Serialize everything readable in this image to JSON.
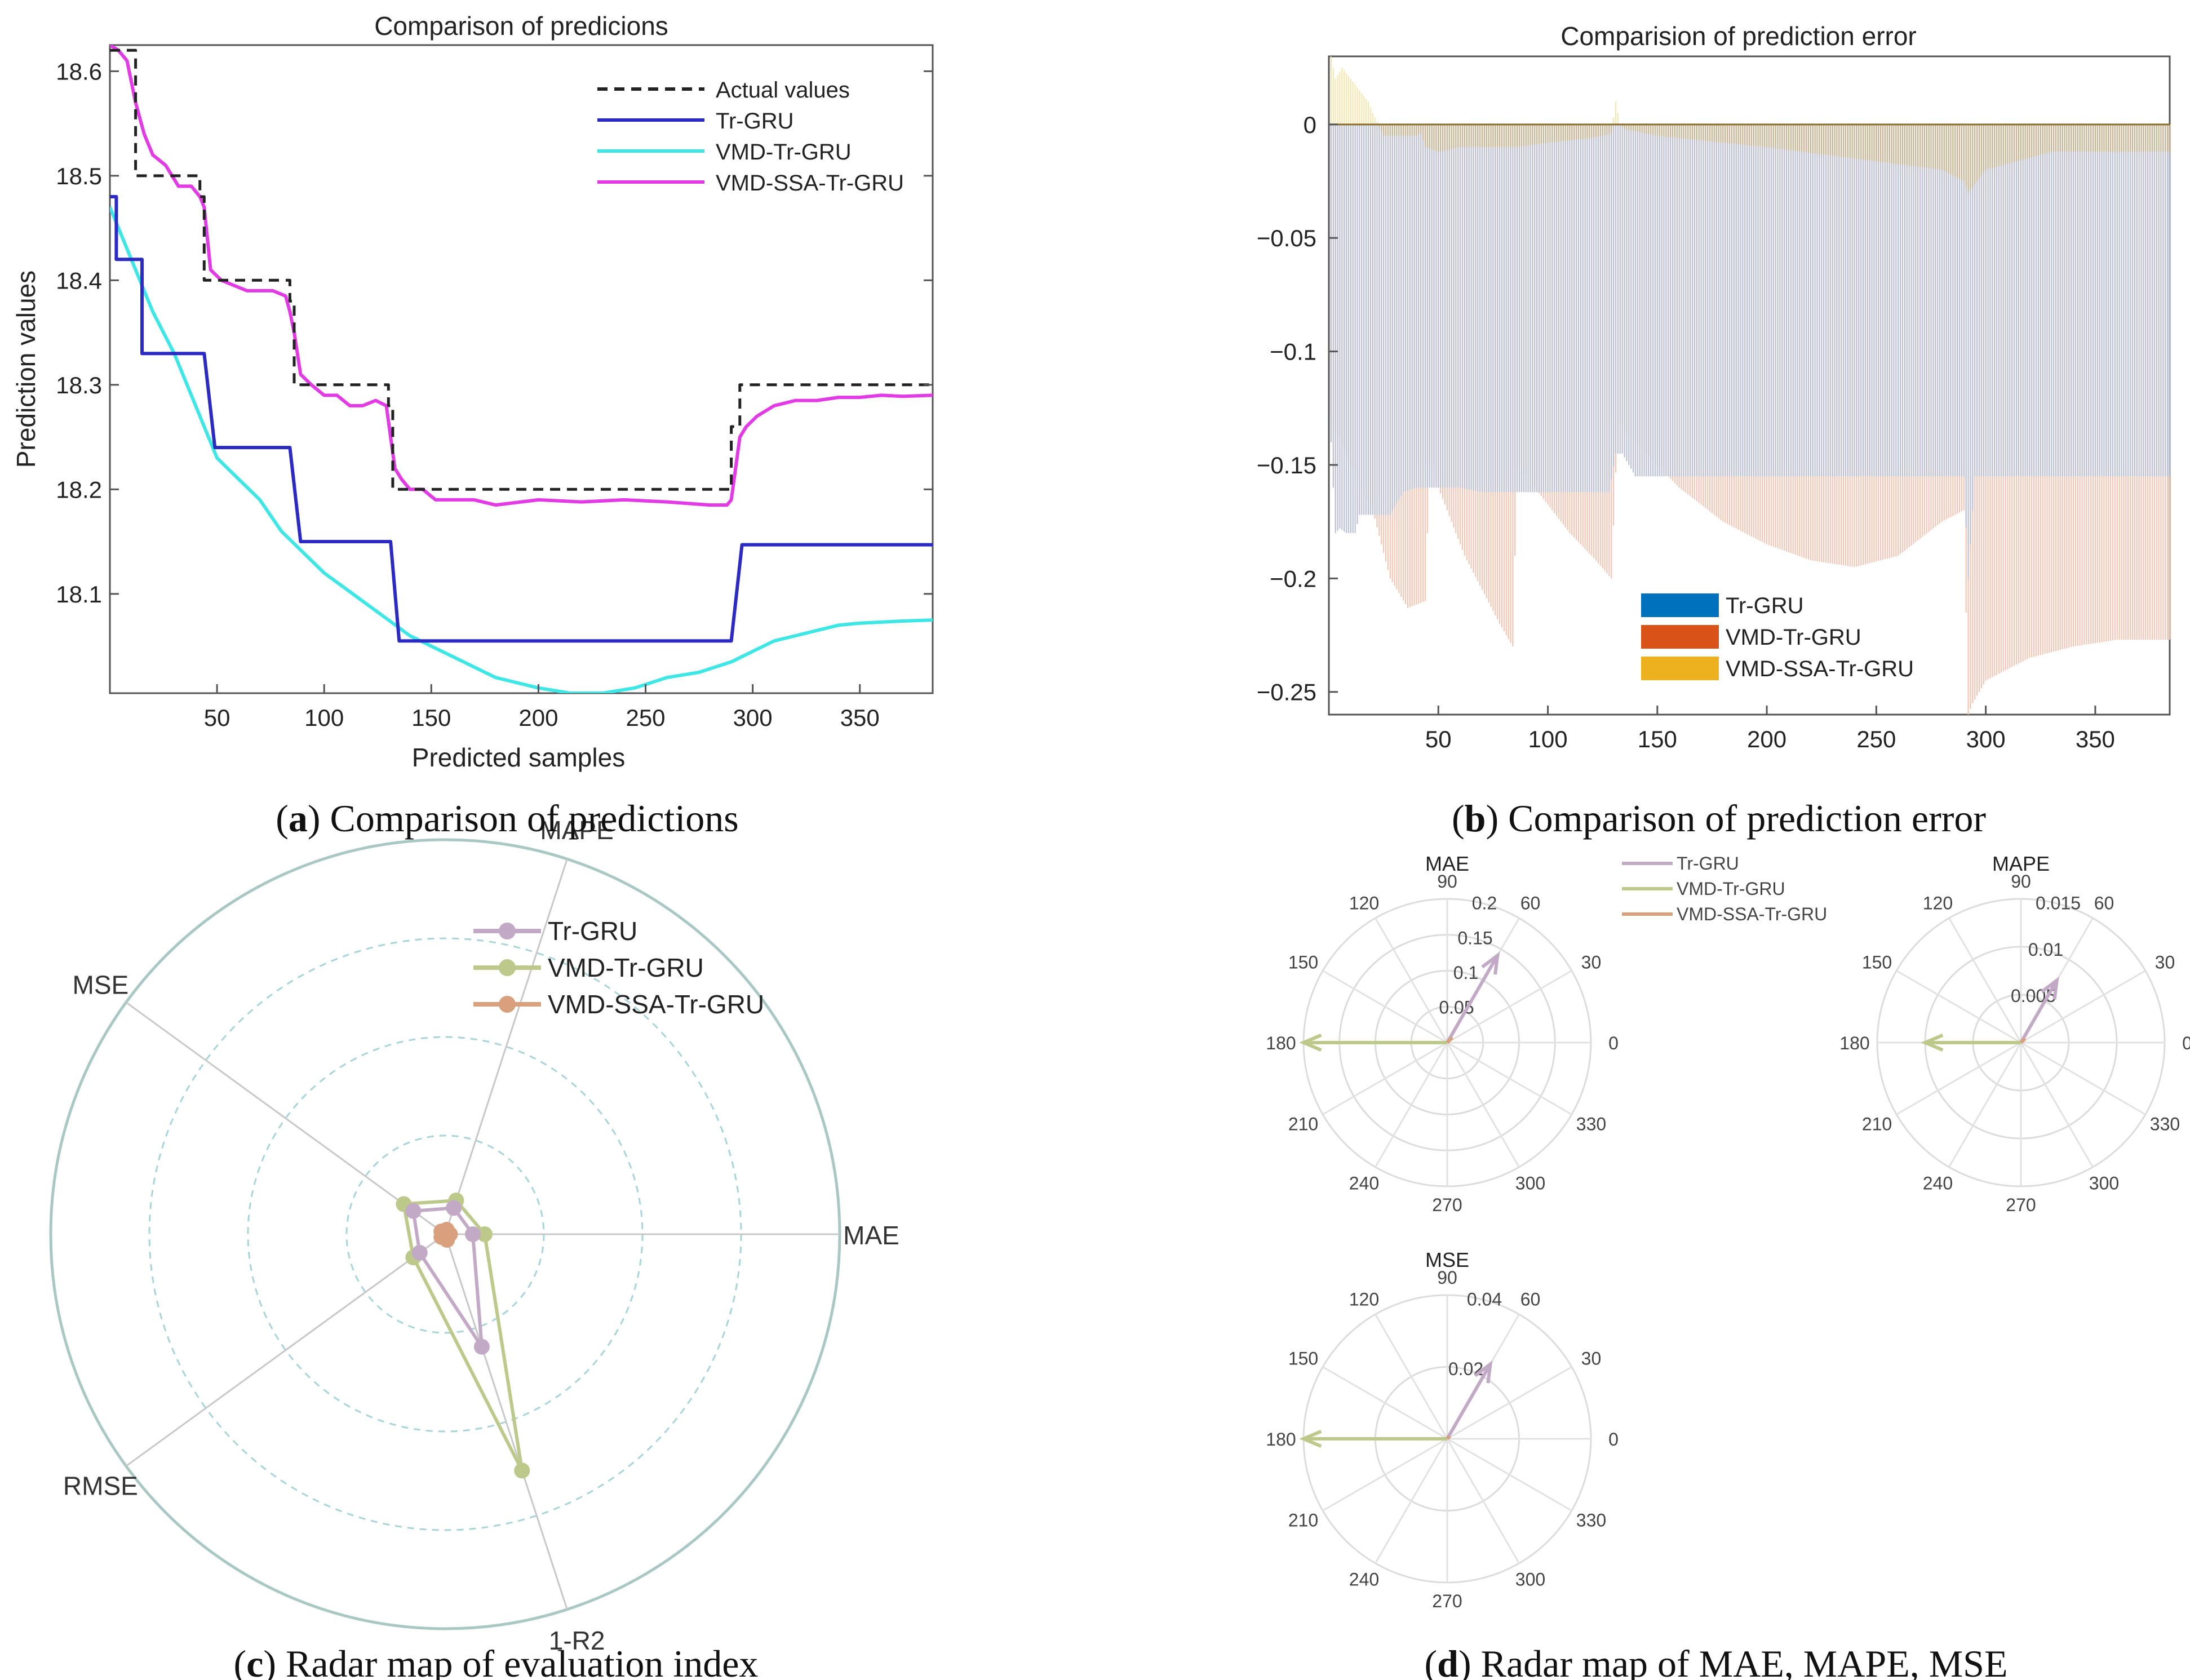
{
  "colors": {
    "actual": "#222222",
    "tr_gru": "#2b2bc4",
    "vmd_tr_gru": "#3ee6e6",
    "vmd_ssa_tr_gru": "#e23be6",
    "bar_tr_gru": "#0072bd",
    "bar_vmd_tr_gru": "#d95319",
    "bar_vmd_ssa_tr_gru": "#edb120",
    "radar_tr_gru": "#c2aac6",
    "radar_vmd_tr_gru": "#bcc98a",
    "radar_vmd_ssa_tr_gru": "#d9a07e"
  },
  "captions": {
    "a": {
      "letter": "a",
      "text": " Comparison of predictions"
    },
    "b": {
      "letter": "b",
      "text": " Comparison of prediction error"
    },
    "c": {
      "letter": "c",
      "text": " Radar map of evaluation index"
    },
    "d": {
      "letter": "d",
      "text": " Radar map of MAE, MAPE, MSE"
    }
  },
  "chart_data": [
    {
      "id": "a",
      "type": "line",
      "title": "Comparison of predicions",
      "xlabel": "Predicted samples",
      "ylabel": "Prediction values",
      "xlim": [
        0,
        384
      ],
      "ylim": [
        18.005,
        18.625
      ],
      "xticks": [
        50,
        100,
        150,
        200,
        250,
        300,
        350
      ],
      "yticks": [
        18.1,
        18.2,
        18.3,
        18.4,
        18.5,
        18.6
      ],
      "legend": [
        "Actual values",
        "Tr-GRU",
        "VMD-Tr-GRU",
        "VMD-SSA-Tr-GRU"
      ],
      "series": [
        {
          "name": "Actual values",
          "style": "dashed",
          "x": [
            0,
            12,
            12,
            42,
            42,
            44,
            44,
            84,
            84,
            86,
            86,
            130,
            130,
            132,
            132,
            290,
            290,
            294,
            294,
            384
          ],
          "y": [
            18.62,
            18.62,
            18.5,
            18.5,
            18.48,
            18.48,
            18.4,
            18.4,
            18.38,
            18.38,
            18.3,
            18.3,
            18.28,
            18.28,
            18.2,
            18.2,
            18.26,
            18.26,
            18.3,
            18.3
          ]
        },
        {
          "name": "Tr-GRU",
          "x": [
            0,
            3,
            3,
            15,
            15,
            44,
            44,
            49,
            49,
            84,
            84,
            89,
            89,
            131,
            131,
            135,
            135,
            290,
            290,
            295,
            295,
            384
          ],
          "y": [
            18.48,
            18.48,
            18.42,
            18.42,
            18.33,
            18.33,
            18.33,
            18.24,
            18.24,
            18.24,
            18.24,
            18.15,
            18.15,
            18.15,
            18.15,
            18.055,
            18.055,
            18.055,
            18.055,
            18.147,
            18.147,
            18.147
          ]
        },
        {
          "name": "VMD-Tr-GRU",
          "x": [
            0,
            10,
            20,
            30,
            40,
            50,
            60,
            70,
            80,
            90,
            100,
            120,
            140,
            160,
            180,
            200,
            215,
            230,
            245,
            260,
            275,
            290,
            300,
            310,
            320,
            330,
            340,
            350,
            360,
            370,
            384
          ],
          "y": [
            18.47,
            18.42,
            18.37,
            18.33,
            18.28,
            18.23,
            18.21,
            18.19,
            18.16,
            18.14,
            18.12,
            18.09,
            18.06,
            18.04,
            18.02,
            18.01,
            18.005,
            18.005,
            18.01,
            18.02,
            18.025,
            18.035,
            18.045,
            18.055,
            18.06,
            18.065,
            18.07,
            18.072,
            18.073,
            18.074,
            18.075
          ]
        },
        {
          "name": "VMD-SSA-Tr-GRU",
          "x": [
            0,
            4,
            8,
            12,
            16,
            20,
            26,
            32,
            38,
            42,
            44,
            47,
            52,
            58,
            64,
            70,
            76,
            82,
            84,
            86,
            89,
            94,
            100,
            106,
            112,
            118,
            124,
            129,
            131,
            133,
            136,
            140,
            146,
            152,
            160,
            170,
            180,
            200,
            220,
            240,
            260,
            280,
            288,
            290,
            292,
            294,
            297,
            302,
            310,
            320,
            330,
            340,
            350,
            360,
            370,
            384
          ],
          "y": [
            18.625,
            18.62,
            18.61,
            18.57,
            18.54,
            18.52,
            18.51,
            18.49,
            18.49,
            18.48,
            18.47,
            18.41,
            18.4,
            18.395,
            18.39,
            18.39,
            18.39,
            18.385,
            18.37,
            18.35,
            18.31,
            18.3,
            18.29,
            18.29,
            18.28,
            18.28,
            18.285,
            18.28,
            18.25,
            18.22,
            18.21,
            18.2,
            18.2,
            18.19,
            18.19,
            18.19,
            18.185,
            18.19,
            18.188,
            18.19,
            18.188,
            18.185,
            18.185,
            18.19,
            18.22,
            18.25,
            18.26,
            18.27,
            18.28,
            18.285,
            18.285,
            18.288,
            18.288,
            18.29,
            18.289,
            18.29
          ]
        }
      ]
    },
    {
      "id": "b",
      "type": "bar",
      "title": "Comparision of prediction error",
      "xlim": [
        0,
        384
      ],
      "ylim": [
        -0.26,
        0.03
      ],
      "xticks": [
        50,
        100,
        150,
        200,
        250,
        300,
        350
      ],
      "yticks": [
        0,
        -0.05,
        -0.1,
        -0.15,
        -0.2,
        -0.25
      ],
      "ytick_labels": [
        "0",
        "−0.05",
        "−0.1",
        "−0.15",
        "−0.2",
        "−0.25"
      ],
      "legend": [
        "Tr-GRU",
        "VMD-Tr-GRU",
        "VMD-SSA-Tr-GRU"
      ],
      "series": [
        {
          "name": "Tr-GRU",
          "x": [
            1,
            3,
            5,
            8,
            12,
            14,
            18,
            22,
            28,
            34,
            40,
            46,
            52,
            60,
            70,
            80,
            90,
            100,
            110,
            120,
            128,
            131,
            134,
            140,
            150,
            200,
            250,
            290,
            292,
            295,
            300,
            350,
            384
          ],
          "y": [
            -0.14,
            -0.18,
            -0.178,
            -0.18,
            -0.18,
            -0.172,
            -0.172,
            -0.172,
            -0.172,
            -0.162,
            -0.16,
            -0.16,
            -0.16,
            -0.16,
            -0.162,
            -0.162,
            -0.162,
            -0.162,
            -0.162,
            -0.162,
            -0.162,
            -0.145,
            -0.145,
            -0.155,
            -0.155,
            -0.155,
            -0.155,
            -0.155,
            -0.2,
            -0.155,
            -0.155,
            -0.155,
            -0.155
          ]
        },
        {
          "name": "VMD-Tr-GRU",
          "x": [
            1,
            10,
            20,
            28,
            36,
            44,
            46,
            54,
            62,
            70,
            78,
            84,
            86,
            94,
            102,
            110,
            120,
            129,
            132,
            140,
            160,
            180,
            200,
            220,
            240,
            260,
            280,
            290,
            292,
            294,
            300,
            320,
            340,
            360,
            384
          ],
          "y": [
            -0.13,
            -0.15,
            -0.17,
            -0.2,
            -0.213,
            -0.21,
            -0.15,
            -0.17,
            -0.19,
            -0.205,
            -0.22,
            -0.23,
            -0.15,
            -0.16,
            -0.17,
            -0.18,
            -0.19,
            -0.2,
            -0.13,
            -0.14,
            -0.16,
            -0.175,
            -0.185,
            -0.192,
            -0.195,
            -0.19,
            -0.175,
            -0.17,
            -0.26,
            -0.255,
            -0.245,
            -0.235,
            -0.23,
            -0.227,
            -0.227
          ]
        },
        {
          "name": "VMD-SSA-Tr-GRU",
          "x": [
            1,
            3,
            6,
            10,
            14,
            18,
            20,
            25,
            30,
            40,
            42,
            44,
            50,
            60,
            84,
            86,
            100,
            120,
            129,
            131,
            133,
            135,
            150,
            200,
            280,
            290,
            292,
            300,
            330,
            384
          ],
          "y": [
            0.03,
            0.02,
            0.025,
            0.02,
            0.015,
            0.01,
            0.005,
            -0.005,
            -0.005,
            -0.005,
            -0.004,
            -0.01,
            -0.012,
            -0.01,
            -0.01,
            -0.01,
            -0.008,
            -0.006,
            -0.004,
            0.01,
            0.0,
            -0.002,
            -0.005,
            -0.01,
            -0.02,
            -0.025,
            -0.03,
            -0.02,
            -0.012,
            -0.012
          ]
        }
      ]
    },
    {
      "id": "c",
      "type": "radar",
      "axes": [
        "MAPE",
        "MAE",
        "1-R2",
        "RMSE",
        "MSE"
      ],
      "legend": [
        "Tr-GRU",
        "VMD-Tr-GRU",
        "VMD-SSA-Tr-GRU"
      ],
      "rmax": 1.0,
      "rings": [
        0.25,
        0.5,
        0.75
      ],
      "series": [
        {
          "name": "Tr-GRU",
          "values": [
            0.07,
            0.07,
            0.3,
            0.08,
            0.1
          ]
        },
        {
          "name": "VMD-Tr-GRU",
          "values": [
            0.09,
            0.1,
            0.63,
            0.1,
            0.13
          ]
        },
        {
          "name": "VMD-SSA-Tr-GRU",
          "values": [
            0.012,
            0.012,
            0.015,
            0.012,
            0.012
          ]
        }
      ]
    },
    {
      "id": "d",
      "type": "polar",
      "angle_labels": [
        "0",
        "30",
        "60",
        "90",
        "120",
        "150",
        "180",
        "210",
        "240",
        "270",
        "300",
        "330"
      ],
      "legend": [
        "Tr-GRU",
        "VMD-Tr-GRU",
        "VMD-SSA-Tr-GRU"
      ],
      "subplots": [
        {
          "title": "MAE",
          "rmax": 0.2,
          "ticks": [
            0.05,
            0.1,
            0.15,
            0.2
          ],
          "tick_labels": [
            "0.05",
            "0.1",
            "0.15",
            "0.2"
          ],
          "arrows": [
            {
              "name": "Tr-GRU",
              "angle": 60,
              "r": 0.14
            },
            {
              "name": "VMD-Tr-GRU",
              "angle": 180,
              "r": 0.2
            },
            {
              "name": "VMD-SSA-Tr-GRU",
              "angle": 45,
              "r": 0.01
            }
          ]
        },
        {
          "title": "MAPE",
          "rmax": 0.015,
          "ticks": [
            0.005,
            0.01,
            0.015
          ],
          "tick_labels": [
            "0.005",
            "0.01",
            "0.015"
          ],
          "arrows": [
            {
              "name": "Tr-GRU",
              "angle": 60,
              "r": 0.0075
            },
            {
              "name": "VMD-Tr-GRU",
              "angle": 180,
              "r": 0.01
            },
            {
              "name": "VMD-SSA-Tr-GRU",
              "angle": 45,
              "r": 0.0006
            }
          ]
        },
        {
          "title": "MSE",
          "rmax": 0.04,
          "ticks": [
            0.02,
            0.04
          ],
          "tick_labels": [
            "0.02",
            "0.04"
          ],
          "arrows": [
            {
              "name": "Tr-GRU",
              "angle": 60,
              "r": 0.024
            },
            {
              "name": "VMD-Tr-GRU",
              "angle": 180,
              "r": 0.04
            },
            {
              "name": "VMD-SSA-Tr-GRU",
              "angle": 45,
              "r": 0.001
            }
          ]
        }
      ]
    }
  ]
}
